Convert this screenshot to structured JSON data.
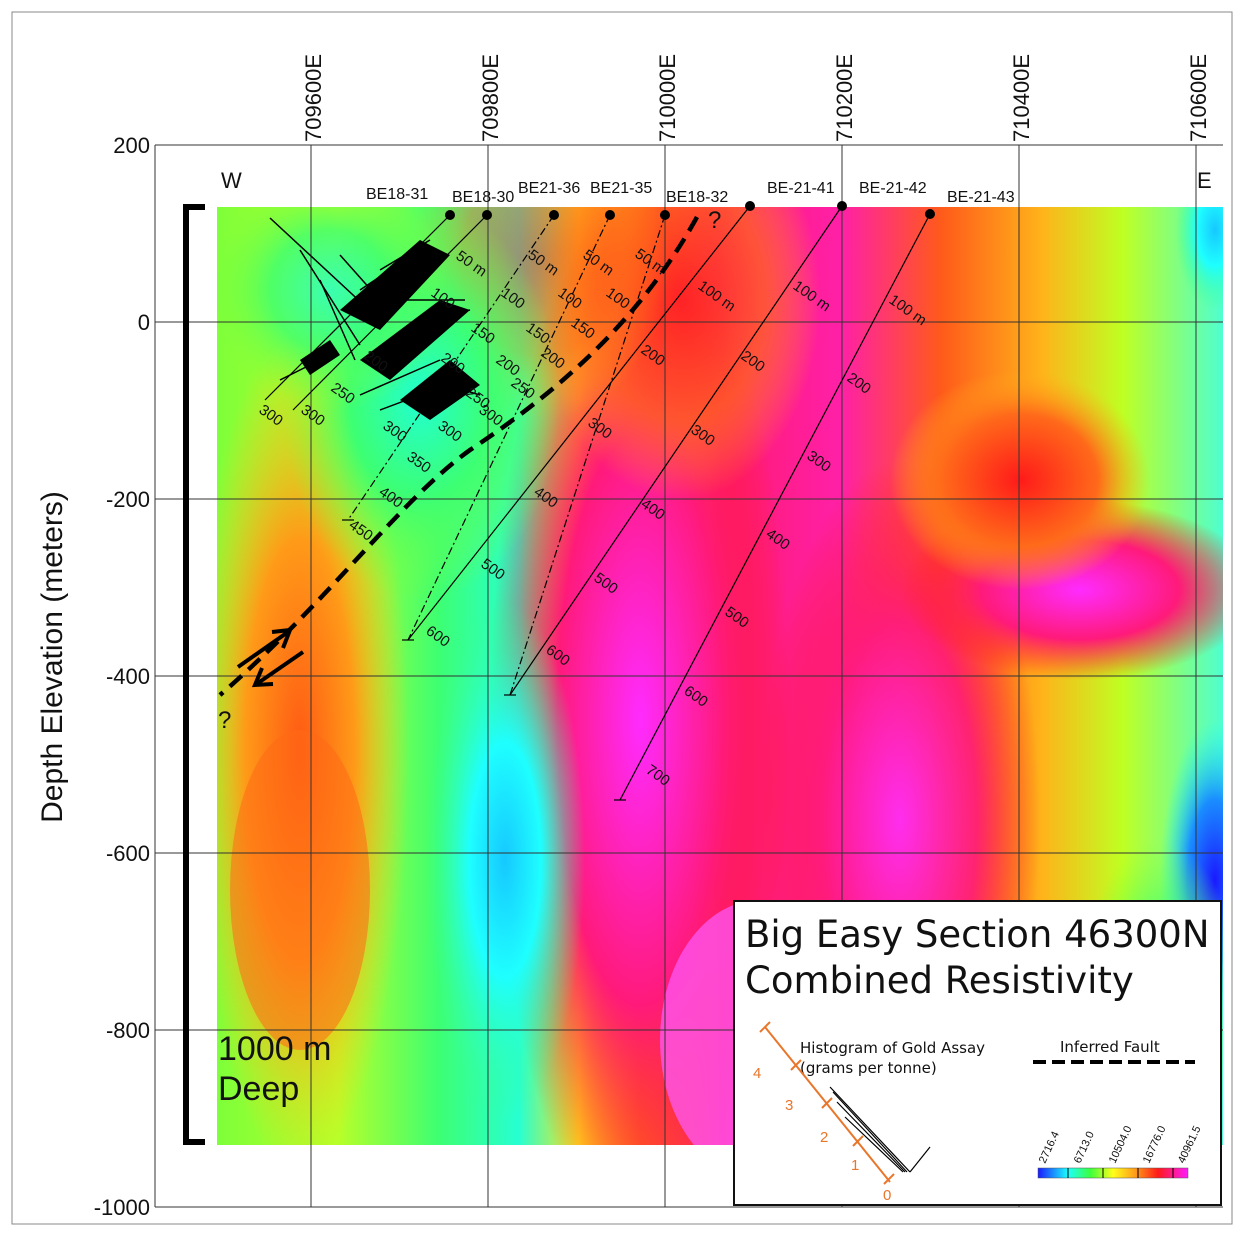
{
  "title": {
    "line1": "Big Easy Section 46300N",
    "line2": "Combined Resistivity"
  },
  "y_axis": {
    "label": "Depth Elevation (meters)",
    "ticks": [
      "200",
      "0",
      "-200",
      "-400",
      "-600",
      "-800",
      "-1000"
    ]
  },
  "x_axis": {
    "ticks": [
      "709600E",
      "709800E",
      "710000E",
      "710200E",
      "710400E",
      "710600E"
    ]
  },
  "compass": {
    "west": "W",
    "east": "E"
  },
  "scale_note": {
    "line1": "1000 m",
    "line2": "Deep"
  },
  "question_mark": "?",
  "drillholes": [
    {
      "name": "BE18-31"
    },
    {
      "name": "BE18-30"
    },
    {
      "name": "BE21-36"
    },
    {
      "name": "BE21-35"
    },
    {
      "name": "BE18-32"
    },
    {
      "name": "BE-21-41"
    },
    {
      "name": "BE-21-42"
    },
    {
      "name": "BE-21-43"
    }
  ],
  "depth_ticks": {
    "first": "50 m",
    "first_long": "100 m",
    "labels": [
      "100",
      "150",
      "200",
      "250",
      "300",
      "350",
      "400",
      "450",
      "500",
      "600",
      "700"
    ]
  },
  "legend": {
    "histogram_label_1": "Histogram of Gold Assay",
    "histogram_label_2": "(grams per tonne)",
    "histogram_ticks": [
      "0",
      "1",
      "2",
      "3",
      "4"
    ],
    "fault_label": "Inferred Fault",
    "colorbar_ticks": [
      "2716.4",
      "6713.0",
      "10504.0",
      "16776.0",
      "40961.5"
    ],
    "histogram_color": "#e8762b"
  },
  "colors": {
    "blue": "#1a1aff",
    "cyan": "#00ffff",
    "green": "#3dff3d",
    "yellow": "#ffff00",
    "orange": "#ff8c1a",
    "red": "#ff1a1a",
    "magenta": "#ff00ff"
  }
}
